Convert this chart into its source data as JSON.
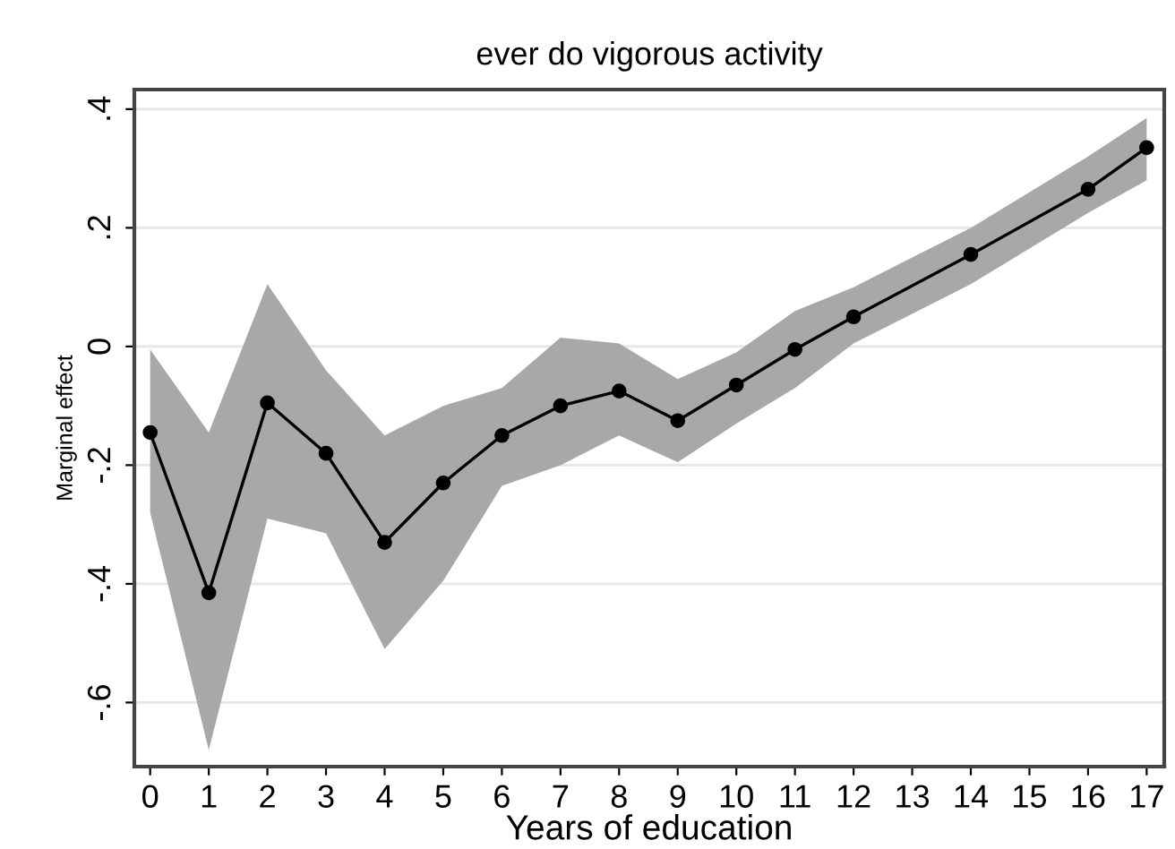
{
  "chart_data": {
    "type": "line",
    "title": "ever do vigorous activity",
    "xlabel": "Years of education",
    "ylabel": "Marginal effect",
    "series": [
      {
        "color": "#000000",
        "x": [
          0,
          1,
          2,
          3,
          4,
          5,
          6,
          7,
          8,
          9,
          10,
          11,
          12,
          14,
          16,
          17
        ],
        "values": [
          -0.145,
          -0.415,
          -0.095,
          -0.18,
          -0.33,
          -0.23,
          -0.15,
          -0.1,
          -0.075,
          -0.125,
          -0.065,
          -0.005,
          0.05,
          0.155,
          0.265,
          0.335
        ],
        "lower": [
          -0.28,
          -0.68,
          -0.29,
          -0.315,
          -0.51,
          -0.395,
          -0.235,
          -0.2,
          -0.15,
          -0.195,
          -0.13,
          -0.07,
          0.005,
          0.105,
          0.225,
          0.28
        ],
        "upper": [
          -0.005,
          -0.145,
          0.105,
          -0.04,
          -0.15,
          -0.1,
          -0.07,
          0.015,
          0.005,
          -0.055,
          -0.01,
          0.06,
          0.1,
          0.2,
          0.32,
          0.385
        ]
      }
    ],
    "marker": "circle",
    "line_style": "solid",
    "grid": "y",
    "xlim": [
      -0.27,
      17.3
    ],
    "xticks": [
      0,
      1,
      2,
      3,
      4,
      5,
      6,
      7,
      8,
      9,
      10,
      11,
      12,
      13,
      14,
      15,
      16,
      17
    ],
    "ylim": [
      -0.708,
      0.433
    ],
    "yticks": [
      {
        "value": -0.6,
        "label": "-.6"
      },
      {
        "value": -0.4,
        "label": "-.4"
      },
      {
        "value": -0.2,
        "label": "-.2"
      },
      0,
      {
        "value": 0.2,
        "label": ".2"
      },
      {
        "value": 0.4,
        "label": ".4"
      }
    ]
  }
}
